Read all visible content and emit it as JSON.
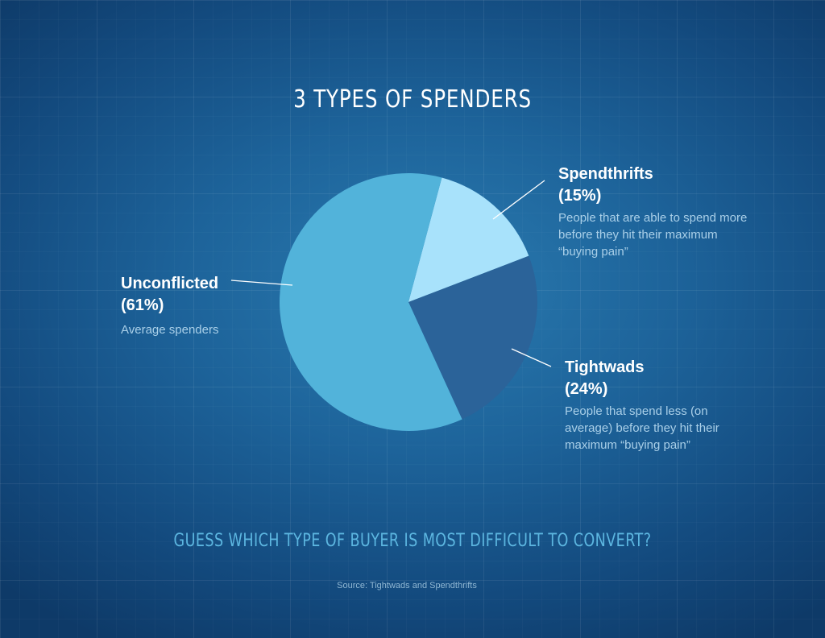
{
  "chart_data": {
    "type": "pie",
    "title": "3 TYPES OF SPENDERS",
    "slices": [
      {
        "name": "Spendthrifts",
        "percent_label": "(15%)",
        "value": 15,
        "description": "People that are able to spend more before they hit their maximum “buying pain”",
        "color": "#a8e2fb"
      },
      {
        "name": "Tightwads",
        "percent_label": "(24%)",
        "value": 24,
        "description": "People that spend less (on average) before they hit their maximum “buying pain”",
        "color": "#2b6399"
      },
      {
        "name": "Unconflicted",
        "percent_label": "(61%)",
        "value": 61,
        "description": "Average spenders",
        "color": "#52b3da"
      }
    ]
  },
  "footer": {
    "question": "GUESS WHICH TYPE OF BUYER IS MOST DIFFICULT TO CONVERT?",
    "source": "Source: Tightwads and Spendthrifts"
  }
}
